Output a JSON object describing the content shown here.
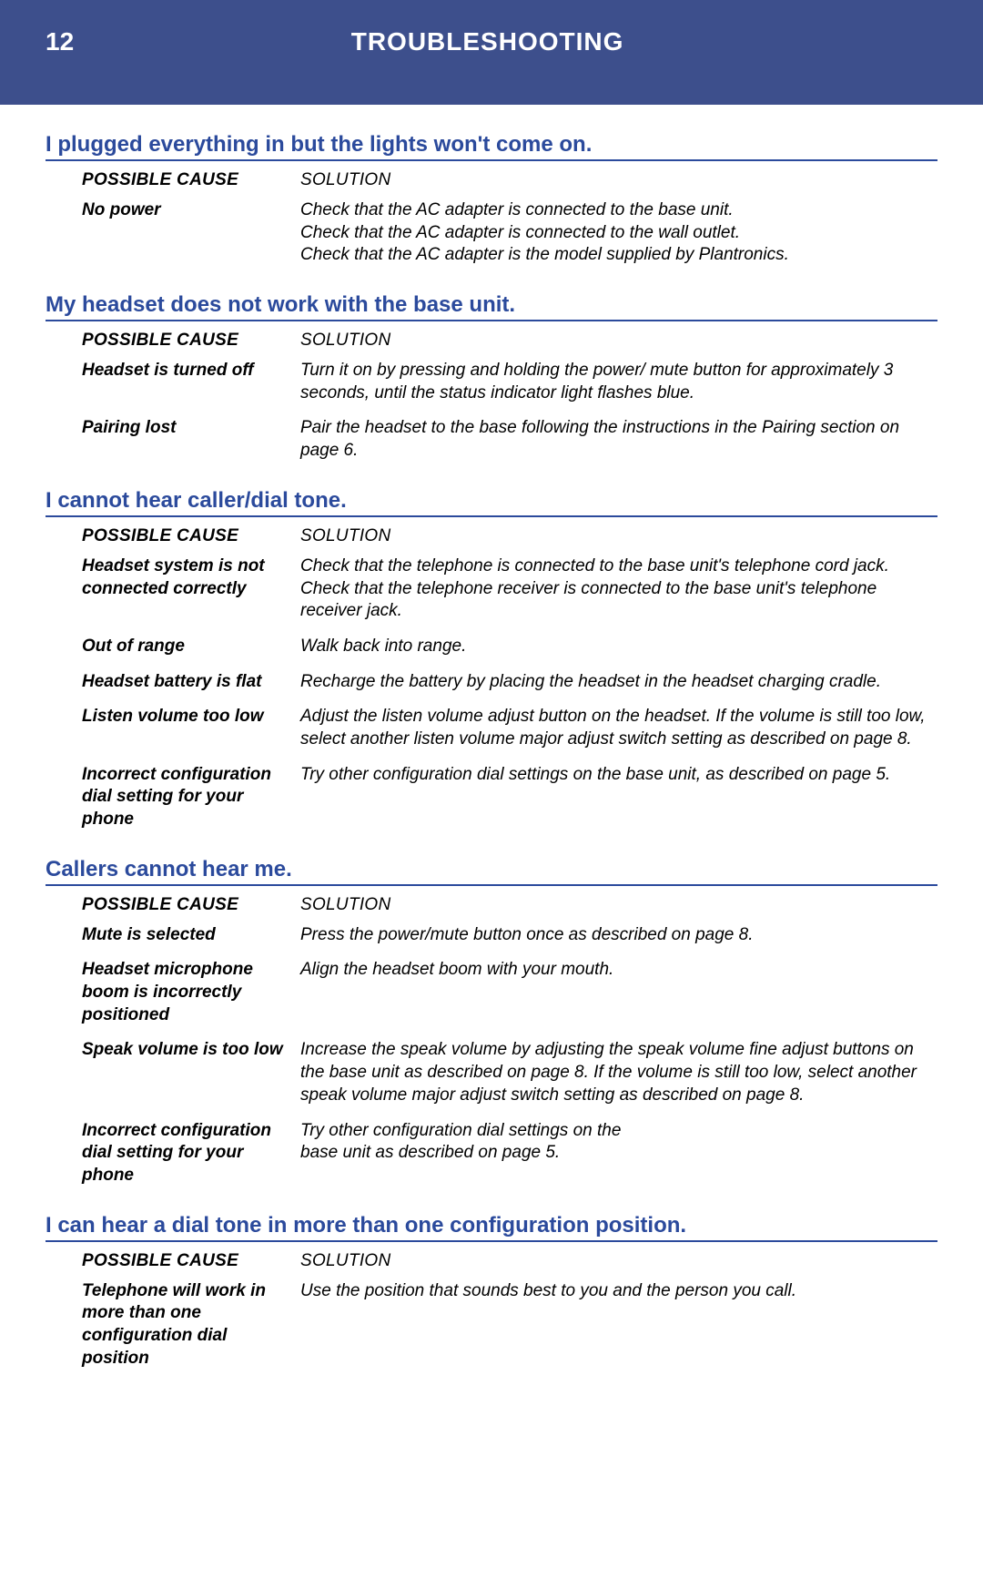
{
  "header": {
    "page_number": "12",
    "title": "TROUBLESHOOTING"
  },
  "column_labels": {
    "cause": "POSSIBLE CAUSE",
    "solution": "SOLUTION"
  },
  "sections": [
    {
      "heading": "I plugged everything in but the lights won't come on.",
      "rows": [
        {
          "cause": "No power",
          "solution": [
            "Check that the AC adapter is connected to the base unit.",
            "Check that the AC adapter is connected to the wall outlet.",
            "Check that the AC adapter is the model supplied by Plantronics."
          ]
        }
      ]
    },
    {
      "heading": "My headset does not work with the base unit.",
      "rows": [
        {
          "cause": "Headset is turned off",
          "solution": [
            "Turn it on by pressing and holding the power/ mute button for approximately 3 seconds, until the status indicator light flashes blue."
          ]
        },
        {
          "cause": "Pairing lost",
          "solution": [
            "Pair the headset to the base following the instructions in the Pairing section on page 6."
          ]
        }
      ]
    },
    {
      "heading": "I cannot hear caller/dial tone.",
      "rows": [
        {
          "cause": "Headset system is not connected correctly",
          "solution": [
            "Check that the telephone is connected to the base unit's telephone cord jack.",
            "Check that the telephone receiver is connected to the base unit's telephone receiver jack."
          ]
        },
        {
          "cause": "Out of range",
          "solution": [
            "Walk back into range."
          ]
        },
        {
          "cause": "Headset battery is flat",
          "solution": [
            "Recharge the battery by placing the headset in the headset charging cradle."
          ]
        },
        {
          "cause": "Listen volume too low",
          "solution": [
            "Adjust the listen volume adjust button on the headset. If the volume is still too low, select another listen volume major adjust switch setting as described on page 8."
          ]
        },
        {
          "cause": "Incorrect configuration dial setting for your phone",
          "solution": [
            "Try other configuration dial settings on the base unit, as described on page 5."
          ]
        }
      ]
    },
    {
      "heading": "Callers cannot hear me.",
      "rows": [
        {
          "cause": "Mute is selected",
          "solution": [
            "Press the power/mute button once as described on page 8."
          ]
        },
        {
          "cause": "Headset microphone boom is incorrectly positioned",
          "solution": [
            "Align the headset boom with your mouth."
          ]
        },
        {
          "cause": "Speak volume is too low",
          "solution": [
            "Increase the speak volume by adjusting the speak volume fine adjust buttons on the base unit as described on page 8. If the volume is still too low, select another speak volume major adjust switch setting as described on page 8."
          ]
        },
        {
          "cause": "Incorrect configuration dial setting for your phone",
          "solution": [
            "Try other configuration dial settings on the",
            "base unit as described on page 5."
          ]
        }
      ]
    },
    {
      "heading": "I can hear a dial tone in more than one configuration position.",
      "rows": [
        {
          "cause": "Telephone will work in more than one configuration dial position",
          "solution": [
            "Use the position that sounds best to you and the person you call."
          ]
        }
      ]
    }
  ]
}
